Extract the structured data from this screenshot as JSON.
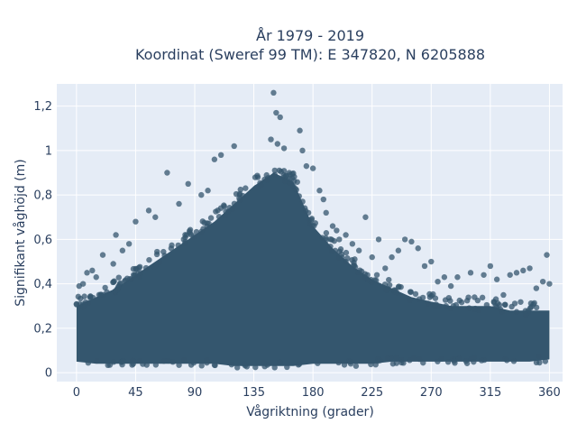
{
  "chart_data": {
    "type": "scatter",
    "title_lines": [
      "År 1979 - 2019",
      "Koordinat (Sweref 99 TM): E 347820, N 6205888"
    ],
    "xlabel": "Vågriktning (grader)",
    "ylabel": "Signifikant våghöjd (m)",
    "xlim": [
      -15,
      370
    ],
    "ylim": [
      -0.04,
      1.3
    ],
    "xticks": [
      0,
      45,
      90,
      135,
      180,
      225,
      270,
      315,
      360
    ],
    "xtick_labels": [
      "0",
      "45",
      "90",
      "135",
      "180",
      "225",
      "270",
      "315",
      "360"
    ],
    "yticks": [
      0,
      0.2,
      0.4,
      0.6,
      0.8,
      1.0,
      1.2
    ],
    "ytick_labels": [
      "0",
      "0,2",
      "0,4",
      "0,6",
      "0,8",
      "1",
      "1,2"
    ],
    "grid": true,
    "plot_background": "#e5ecf6",
    "marker_color": "#34566e",
    "envelope": {
      "x": [
        0,
        15,
        30,
        45,
        60,
        75,
        90,
        105,
        120,
        135,
        150,
        165,
        180,
        195,
        210,
        225,
        240,
        255,
        270,
        285,
        300,
        315,
        330,
        345,
        360
      ],
      "lower": [
        0.05,
        0.04,
        0.04,
        0.04,
        0.04,
        0.04,
        0.04,
        0.04,
        0.03,
        0.03,
        0.03,
        0.03,
        0.04,
        0.04,
        0.04,
        0.04,
        0.05,
        0.05,
        0.05,
        0.05,
        0.05,
        0.05,
        0.05,
        0.05,
        0.06
      ],
      "upper": [
        0.3,
        0.34,
        0.38,
        0.44,
        0.5,
        0.56,
        0.62,
        0.68,
        0.76,
        0.84,
        0.9,
        0.86,
        0.66,
        0.56,
        0.48,
        0.42,
        0.38,
        0.34,
        0.32,
        0.3,
        0.3,
        0.3,
        0.28,
        0.28,
        0.28
      ]
    },
    "outliers": [
      {
        "x": 150,
        "y": 1.26
      },
      {
        "x": 152,
        "y": 1.17
      },
      {
        "x": 155,
        "y": 1.15
      },
      {
        "x": 148,
        "y": 1.05
      },
      {
        "x": 153,
        "y": 1.03
      },
      {
        "x": 158,
        "y": 1.01
      },
      {
        "x": 170,
        "y": 1.09
      },
      {
        "x": 172,
        "y": 1.0
      },
      {
        "x": 120,
        "y": 1.02
      },
      {
        "x": 110,
        "y": 0.98
      },
      {
        "x": 105,
        "y": 0.96
      },
      {
        "x": 175,
        "y": 0.93
      },
      {
        "x": 180,
        "y": 0.92
      },
      {
        "x": 185,
        "y": 0.82
      },
      {
        "x": 188,
        "y": 0.78
      },
      {
        "x": 190,
        "y": 0.72
      },
      {
        "x": 69,
        "y": 0.9
      },
      {
        "x": 85,
        "y": 0.85
      },
      {
        "x": 95,
        "y": 0.8
      },
      {
        "x": 100,
        "y": 0.82
      },
      {
        "x": 60,
        "y": 0.7
      },
      {
        "x": 45,
        "y": 0.68
      },
      {
        "x": 30,
        "y": 0.62
      },
      {
        "x": 40,
        "y": 0.58
      },
      {
        "x": 20,
        "y": 0.53
      },
      {
        "x": 28,
        "y": 0.49
      },
      {
        "x": 8,
        "y": 0.45
      },
      {
        "x": 15,
        "y": 0.43
      },
      {
        "x": 5,
        "y": 0.4
      },
      {
        "x": 2,
        "y": 0.39
      },
      {
        "x": 12,
        "y": 0.46
      },
      {
        "x": 35,
        "y": 0.55
      },
      {
        "x": 55,
        "y": 0.73
      },
      {
        "x": 78,
        "y": 0.76
      },
      {
        "x": 200,
        "y": 0.6
      },
      {
        "x": 205,
        "y": 0.62
      },
      {
        "x": 220,
        "y": 0.7
      },
      {
        "x": 215,
        "y": 0.55
      },
      {
        "x": 230,
        "y": 0.6
      },
      {
        "x": 240,
        "y": 0.52
      },
      {
        "x": 245,
        "y": 0.55
      },
      {
        "x": 250,
        "y": 0.6
      },
      {
        "x": 255,
        "y": 0.59
      },
      {
        "x": 260,
        "y": 0.56
      },
      {
        "x": 265,
        "y": 0.48
      },
      {
        "x": 270,
        "y": 0.5
      },
      {
        "x": 280,
        "y": 0.43
      },
      {
        "x": 290,
        "y": 0.43
      },
      {
        "x": 300,
        "y": 0.45
      },
      {
        "x": 310,
        "y": 0.44
      },
      {
        "x": 315,
        "y": 0.48
      },
      {
        "x": 320,
        "y": 0.42
      },
      {
        "x": 330,
        "y": 0.44
      },
      {
        "x": 335,
        "y": 0.45
      },
      {
        "x": 340,
        "y": 0.46
      },
      {
        "x": 345,
        "y": 0.47
      },
      {
        "x": 350,
        "y": 0.38
      },
      {
        "x": 355,
        "y": 0.41
      },
      {
        "x": 358,
        "y": 0.53
      },
      {
        "x": 360,
        "y": 0.4
      },
      {
        "x": 325,
        "y": 0.35
      },
      {
        "x": 285,
        "y": 0.39
      },
      {
        "x": 275,
        "y": 0.41
      },
      {
        "x": 198,
        "y": 0.64
      },
      {
        "x": 210,
        "y": 0.58
      },
      {
        "x": 225,
        "y": 0.52
      },
      {
        "x": 235,
        "y": 0.47
      },
      {
        "x": 195,
        "y": 0.66
      }
    ]
  }
}
